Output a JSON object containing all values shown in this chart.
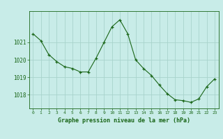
{
  "x": [
    0,
    1,
    2,
    3,
    4,
    5,
    6,
    7,
    8,
    9,
    10,
    11,
    12,
    13,
    14,
    15,
    16,
    17,
    18,
    19,
    20,
    21,
    22,
    23
  ],
  "y": [
    1021.5,
    1021.1,
    1020.3,
    1019.9,
    1019.6,
    1019.5,
    1019.3,
    1019.3,
    1020.1,
    1021.0,
    1021.9,
    1022.3,
    1021.5,
    1020.0,
    1019.5,
    1019.1,
    1018.55,
    1018.05,
    1017.7,
    1017.65,
    1017.55,
    1017.75,
    1018.45,
    1018.9
  ],
  "line_color": "#1a6618",
  "marker": "+",
  "marker_color": "#1a6618",
  "bg_color": "#c8ece8",
  "grid_color": "#a8d4cc",
  "axis_label_color": "#1a6618",
  "tick_color": "#1a6618",
  "xlabel": "Graphe pression niveau de la mer (hPa)",
  "ylim_min": 1017.2,
  "ylim_max": 1022.8,
  "yticks": [
    1018,
    1019,
    1020,
    1021
  ],
  "xticks": [
    0,
    1,
    2,
    3,
    4,
    5,
    6,
    7,
    8,
    9,
    10,
    11,
    12,
    13,
    14,
    15,
    16,
    17,
    18,
    19,
    20,
    21,
    22,
    23
  ],
  "figwidth": 3.2,
  "figheight": 2.0,
  "dpi": 100
}
